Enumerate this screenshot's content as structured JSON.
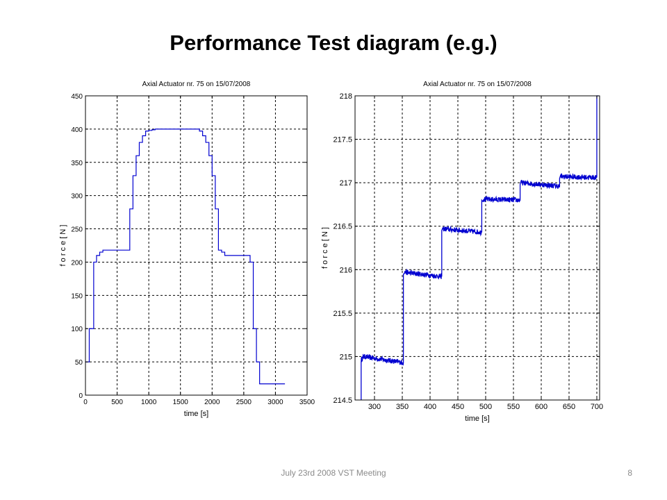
{
  "slide": {
    "title": "Performance Test diagram (e.g.)",
    "footer": "July 23rd 2008   VST Meeting",
    "page_number": "8"
  },
  "colors": {
    "line": "#0000d0",
    "grid": "#000000",
    "axis": "#000000"
  },
  "chart_data": [
    {
      "type": "line",
      "title": "Axial Actuator nr. 75 on 15/07/2008",
      "xlabel": "time [s]",
      "ylabel": "f o r c e  [ N ]",
      "xlim": [
        0,
        3500
      ],
      "ylim": [
        0,
        450
      ],
      "xticks": [
        0,
        500,
        1000,
        1500,
        2000,
        2500,
        3000,
        3500
      ],
      "yticks": [
        0,
        50,
        100,
        150,
        200,
        250,
        300,
        350,
        400,
        450
      ],
      "xtick_labels": [
        "0",
        "500",
        "1000",
        "1500",
        "2000",
        "2500",
        "3000",
        "3500"
      ],
      "ytick_labels": [
        "0",
        "50",
        "100",
        "150",
        "200",
        "250",
        "300",
        "350",
        "400",
        "450"
      ],
      "grid": true,
      "series": [
        {
          "x": [
            0,
            60,
            60,
            130,
            130,
            175,
            175,
            225,
            225,
            275,
            275,
            700,
            700,
            750,
            750,
            800,
            800,
            850,
            850,
            900,
            900,
            950,
            950,
            1000,
            1000,
            1050,
            1050,
            1100,
            1100,
            1800,
            1800,
            1850,
            1850,
            1900,
            1900,
            1950,
            1950,
            2000,
            2000,
            2050,
            2050,
            2100,
            2100,
            2150,
            2150,
            2200,
            2200,
            2600,
            2600,
            2650,
            2650,
            2700,
            2700,
            2750,
            2750,
            2800,
            2800,
            3150
          ],
          "y": [
            50,
            50,
            100,
            100,
            200,
            200,
            210,
            210,
            215,
            215,
            218,
            218,
            280,
            280,
            330,
            330,
            360,
            360,
            380,
            380,
            390,
            390,
            397,
            397,
            398,
            398,
            399,
            399,
            400,
            400,
            397,
            397,
            390,
            390,
            380,
            380,
            360,
            360,
            330,
            330,
            280,
            280,
            218,
            218,
            215,
            215,
            210,
            210,
            200,
            200,
            100,
            100,
            50,
            50,
            17,
            17,
            17,
            17
          ]
        }
      ]
    },
    {
      "type": "line",
      "title": "Axial Actuator nr. 75 on 15/07/2008",
      "xlabel": "time [s]",
      "ylabel": "f o r c e  [ N ]",
      "xlim": [
        265,
        705
      ],
      "ylim": [
        214.5,
        218
      ],
      "xticks": [
        300,
        350,
        400,
        450,
        500,
        550,
        600,
        650,
        700
      ],
      "yticks": [
        214.5,
        215,
        215.5,
        216,
        216.5,
        217,
        217.5,
        218
      ],
      "xtick_labels": [
        "300",
        "350",
        "400",
        "450",
        "500",
        "550",
        "600",
        "650",
        "700"
      ],
      "ytick_labels": [
        "214.5",
        "215",
        "215.5",
        "216",
        "216.5",
        "217",
        "217.5",
        "218"
      ],
      "grid": true,
      "noise_amplitude": 0.03,
      "series": [
        {
          "x": [
            276,
            276,
            280,
            352,
            352,
            354,
            421,
            421,
            423,
            493,
            493,
            495,
            562,
            562,
            564,
            633,
            633,
            635,
            700,
            700,
            703
          ],
          "y": [
            214.5,
            214.96,
            215.0,
            214.93,
            215.95,
            215.97,
            215.92,
            216.45,
            216.47,
            216.43,
            216.8,
            216.81,
            216.8,
            216.98,
            217.0,
            216.96,
            217.05,
            217.07,
            217.06,
            218.0,
            218.0
          ]
        }
      ]
    }
  ]
}
